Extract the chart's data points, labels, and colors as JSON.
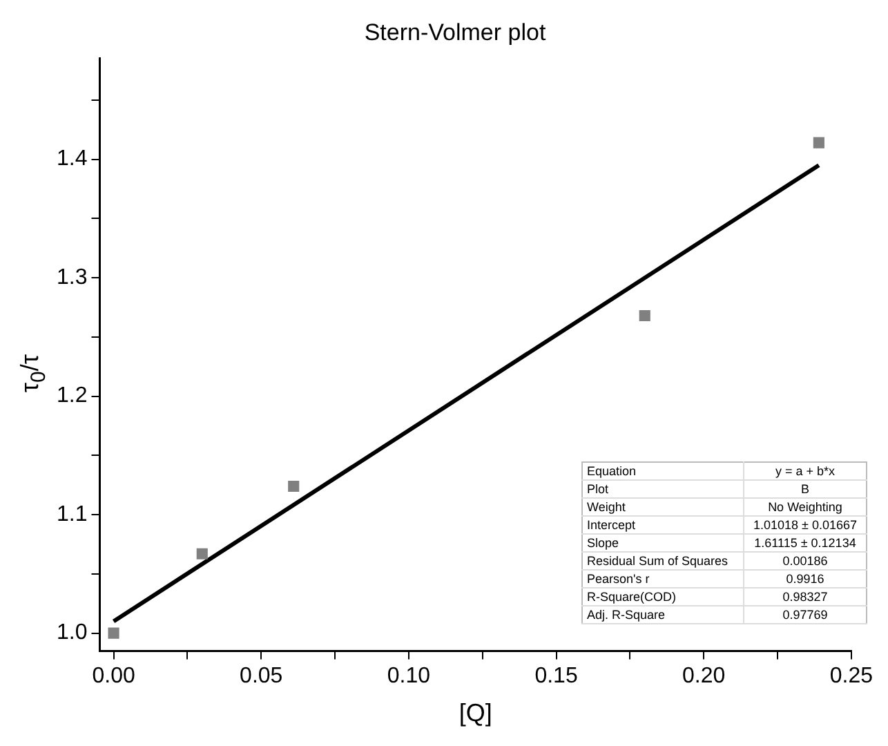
{
  "chart_data": {
    "type": "scatter",
    "title": "Stern-Volmer plot",
    "xlabel": "[Q]",
    "ylabel": "τ$_{0}$/τ",
    "series": [
      {
        "color": "#808080",
        "marker": "square",
        "x": [
          0,
          0.03,
          0.061,
          0.18,
          0.239
        ],
        "values": [
          1.0,
          1.067,
          1.124,
          1.268,
          1.414
        ]
      },
      {
        "type": "line",
        "color": "#000000",
        "marker": "none",
        "line_style": "solid",
        "x": [
          0,
          0.239
        ],
        "values": [
          1.01,
          1.395
        ]
      }
    ],
    "xlim": [
      -0.0047,
      0.25
    ],
    "ylim": [
      0.985,
      1.485
    ],
    "xticks": [
      {
        "value": 0,
        "label": "0.00"
      },
      {
        "value": 0.025,
        "label": null
      },
      {
        "value": 0.05,
        "label": "0.05"
      },
      {
        "value": 0.075,
        "label": null
      },
      {
        "value": 0.1,
        "label": "0.10"
      },
      {
        "value": 0.125,
        "label": null
      },
      {
        "value": 0.15,
        "label": "0.15"
      },
      {
        "value": 0.175,
        "label": null
      },
      {
        "value": 0.2,
        "label": "0.20"
      },
      {
        "value": 0.225,
        "label": null
      },
      {
        "value": 0.25,
        "label": "0.25"
      }
    ],
    "yticks": [
      {
        "value": 1.0,
        "label": "1.0"
      },
      {
        "value": 1.05,
        "label": null
      },
      {
        "value": 1.1,
        "label": "1.1"
      },
      {
        "value": 1.15,
        "label": null
      },
      {
        "value": 1.2,
        "label": "1.2"
      },
      {
        "value": 1.25,
        "label": null
      },
      {
        "value": 1.3,
        "label": "1.3"
      },
      {
        "value": 1.35,
        "label": null
      },
      {
        "value": 1.4,
        "label": "1.4"
      },
      {
        "value": 1.45,
        "label": null
      }
    ],
    "grid": false,
    "legend": false,
    "annotations": [
      "Equation",
      "y = a + b*x",
      "Plot",
      "B",
      "Weight",
      "No Weighting",
      "Intercept",
      "1.01018 ± 0.01667",
      "Slope",
      "1.61115 ± 0.12134",
      "Residual Sum of Squares",
      "0.00186",
      "Pearson's r",
      "0.9916",
      "R-Square(COD)",
      "0.98327",
      "Adj. R-Square",
      "0.97769"
    ]
  }
}
